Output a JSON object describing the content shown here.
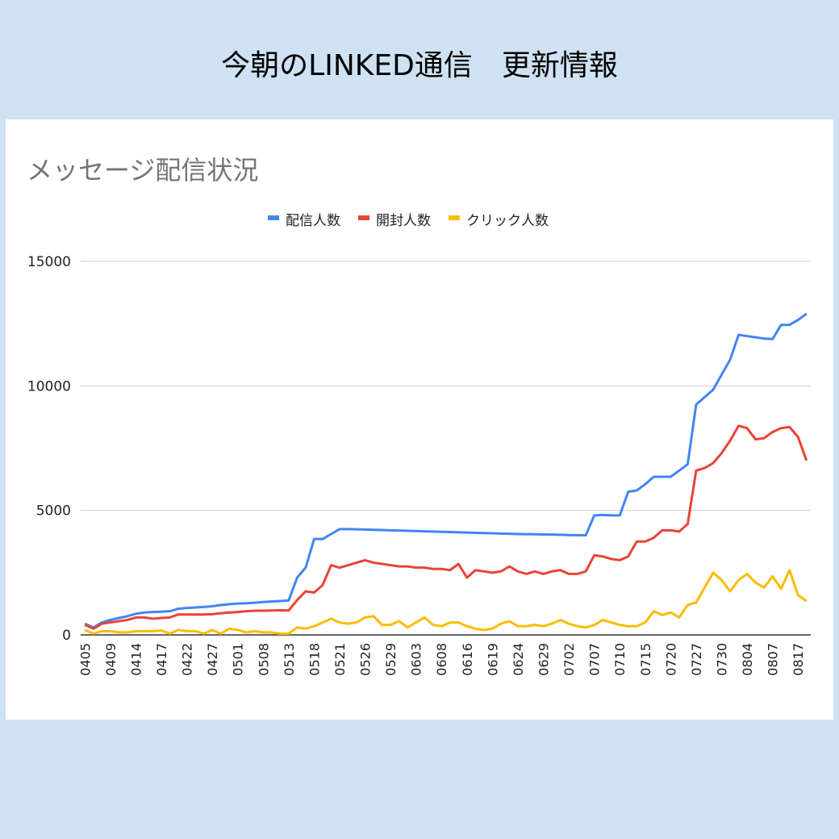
{
  "header": {
    "title": "今朝のLINKED通信　更新情報"
  },
  "chart_data": {
    "type": "line",
    "title": "メッセージ配信状況",
    "categories": [
      "0405",
      null,
      null,
      "0409",
      null,
      null,
      "0414",
      null,
      null,
      "0417",
      null,
      null,
      "0422",
      null,
      null,
      "0427",
      null,
      null,
      "0501",
      null,
      null,
      "0508",
      null,
      null,
      "0513",
      null,
      null,
      "0518",
      null,
      null,
      "0521",
      null,
      null,
      "0526",
      null,
      null,
      "0529",
      null,
      null,
      "0603",
      null,
      null,
      "0608",
      null,
      null,
      "0616",
      null,
      null,
      "0619",
      null,
      null,
      "0624",
      null,
      null,
      "0629",
      null,
      null,
      "0702",
      null,
      null,
      "0707",
      null,
      null,
      "0710",
      null,
      null,
      "0715",
      null,
      null,
      "0720",
      null,
      null,
      "0727",
      null,
      null,
      "0730",
      null,
      null,
      "0804",
      null,
      null,
      "0807",
      null,
      null,
      "0817",
      null
    ],
    "series": [
      {
        "name": "配信人数",
        "color": "#4285f4",
        "values": [
          450,
          300,
          500,
          600,
          680,
          750,
          850,
          900,
          920,
          930,
          950,
          1050,
          1080,
          1100,
          1120,
          1150,
          1200,
          1230,
          1260,
          1270,
          1290,
          1320,
          1340,
          1360,
          1380,
          2300,
          2700,
          3850,
          3850,
          4050,
          4250,
          4250,
          4240,
          4230,
          4220,
          4210,
          4200,
          4190,
          4180,
          4170,
          4160,
          4150,
          4140,
          4130,
          4120,
          4110,
          4100,
          4090,
          4080,
          4070,
          4060,
          4050,
          4045,
          4040,
          4035,
          4030,
          4020,
          4010,
          4005,
          4000,
          4800,
          4820,
          4800,
          4800,
          5750,
          5800,
          6050,
          6350,
          6350,
          6350,
          6600,
          6850,
          9250,
          9550,
          9850,
          10450,
          11050,
          12050,
          12000,
          11950,
          11900,
          11880,
          12450,
          12450,
          12650,
          12900
        ]
      },
      {
        "name": "開封人数",
        "color": "#ea4335",
        "values": [
          400,
          250,
          450,
          500,
          550,
          600,
          700,
          700,
          650,
          680,
          700,
          820,
          820,
          820,
          820,
          830,
          870,
          900,
          920,
          950,
          970,
          970,
          980,
          990,
          980,
          1400,
          1750,
          1700,
          2000,
          2800,
          2700,
          2800,
          2900,
          3000,
          2900,
          2850,
          2800,
          2750,
          2750,
          2700,
          2700,
          2650,
          2650,
          2600,
          2850,
          2300,
          2600,
          2550,
          2500,
          2550,
          2750,
          2550,
          2450,
          2550,
          2450,
          2550,
          2600,
          2450,
          2450,
          2550,
          3200,
          3150,
          3050,
          3000,
          3150,
          3750,
          3750,
          3900,
          4200,
          4200,
          4150,
          4450,
          6600,
          6700,
          6900,
          7300,
          7800,
          8400,
          8300,
          7850,
          7900,
          8150,
          8300,
          8350,
          7950,
          7000
        ]
      },
      {
        "name": "クリック人数",
        "color": "#fbbc04",
        "values": [
          200,
          50,
          150,
          150,
          100,
          100,
          150,
          150,
          150,
          180,
          50,
          200,
          150,
          150,
          50,
          200,
          50,
          250,
          200,
          100,
          150,
          100,
          100,
          50,
          50,
          300,
          250,
          350,
          500,
          650,
          500,
          450,
          500,
          700,
          750,
          400,
          400,
          550,
          300,
          500,
          700,
          400,
          350,
          500,
          500,
          350,
          250,
          200,
          250,
          450,
          550,
          350,
          350,
          400,
          350,
          450,
          600,
          450,
          350,
          300,
          400,
          600,
          500,
          400,
          350,
          350,
          500,
          950,
          800,
          900,
          700,
          1200,
          1300,
          1900,
          2500,
          2200,
          1750,
          2200,
          2450,
          2100,
          1900,
          2350,
          1850,
          2600,
          1600,
          1350
        ]
      }
    ],
    "ylim": [
      0,
      15000
    ],
    "yticks": [
      0,
      5000,
      10000,
      15000
    ],
    "grid": true,
    "legend": "top"
  }
}
